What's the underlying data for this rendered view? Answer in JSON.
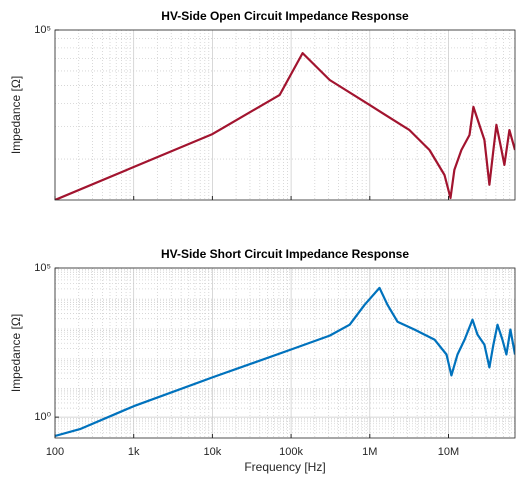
{
  "chart_data": [
    {
      "type": "line",
      "title": "HV-Side Open Circuit Impedance Response",
      "ylabel": "Impedance [Ω]",
      "log_x": true,
      "log_y": true,
      "grid": true,
      "minor_grid": true,
      "xlim": [
        100,
        70000000
      ],
      "xticks": [
        100,
        1000,
        10000,
        100000,
        1000000,
        10000000
      ],
      "xtick_labels": false,
      "ylim": [
        12000,
        100000
      ],
      "yticks": [
        {
          "value": 100000,
          "label": "10⁵"
        }
      ],
      "series": [
        {
          "color": "#a2142f",
          "x": [
            100,
            1000,
            10000,
            71600,
            140000,
            309000,
            1000000,
            3200000,
            5740000,
            8900000,
            10600000,
            11900000,
            14600000,
            18500000,
            20700000,
            24700000,
            28600000,
            33100000,
            37200000,
            40600000,
            47100000,
            51400000,
            59500000,
            70000000
          ],
          "values": [
            12000,
            18100,
            27300,
            44500,
            75000,
            53600,
            39200,
            28700,
            22400,
            16400,
            12300,
            17500,
            22400,
            27000,
            38300,
            30600,
            25400,
            14500,
            22400,
            30600,
            22400,
            18600,
            28700,
            22400
          ]
        }
      ]
    },
    {
      "type": "line",
      "title": "HV-Side Short Circuit Impedance Response",
      "ylabel": "Impedance [Ω]",
      "xlabel": "Frequency [Hz]",
      "log_x": true,
      "log_y": true,
      "grid": true,
      "minor_grid": true,
      "xlim": [
        100,
        70000000
      ],
      "xticks": [
        100,
        {
          "value": 1000,
          "label": "1k"
        },
        {
          "value": 10000,
          "label": "10k"
        },
        {
          "value": 100000,
          "label": "100k"
        },
        {
          "value": 1000000,
          "label": "1M"
        },
        {
          "value": 10000000,
          "label": "10M"
        }
      ],
      "ylim": [
        0.2,
        100000
      ],
      "yticks": [
        {
          "value": 1,
          "label": "10⁰"
        },
        {
          "value": 100000,
          "label": "10⁵"
        }
      ],
      "series": [
        {
          "color": "#0072bd",
          "x": [
            100,
            208,
            1000,
            10000,
            100000,
            309000,
            555000,
            859000,
            1330000,
            1680000,
            2250000,
            3710000,
            6640000,
            9440000,
            10900000,
            13000000,
            16000000,
            20200000,
            23400000,
            28600000,
            33100000,
            37200000,
            41900000,
            48400000,
            54400000,
            61200000,
            70000000
          ],
          "values": [
            0.233,
            0.398,
            2.33,
            21.5,
            185,
            541,
            1260,
            5850,
            21500,
            5850,
            1585,
            858,
            398,
            126,
            25,
            126,
            398,
            1850,
            585,
            271,
            46.4,
            271,
            1260,
            398,
            126,
            858,
            126
          ]
        }
      ]
    }
  ]
}
